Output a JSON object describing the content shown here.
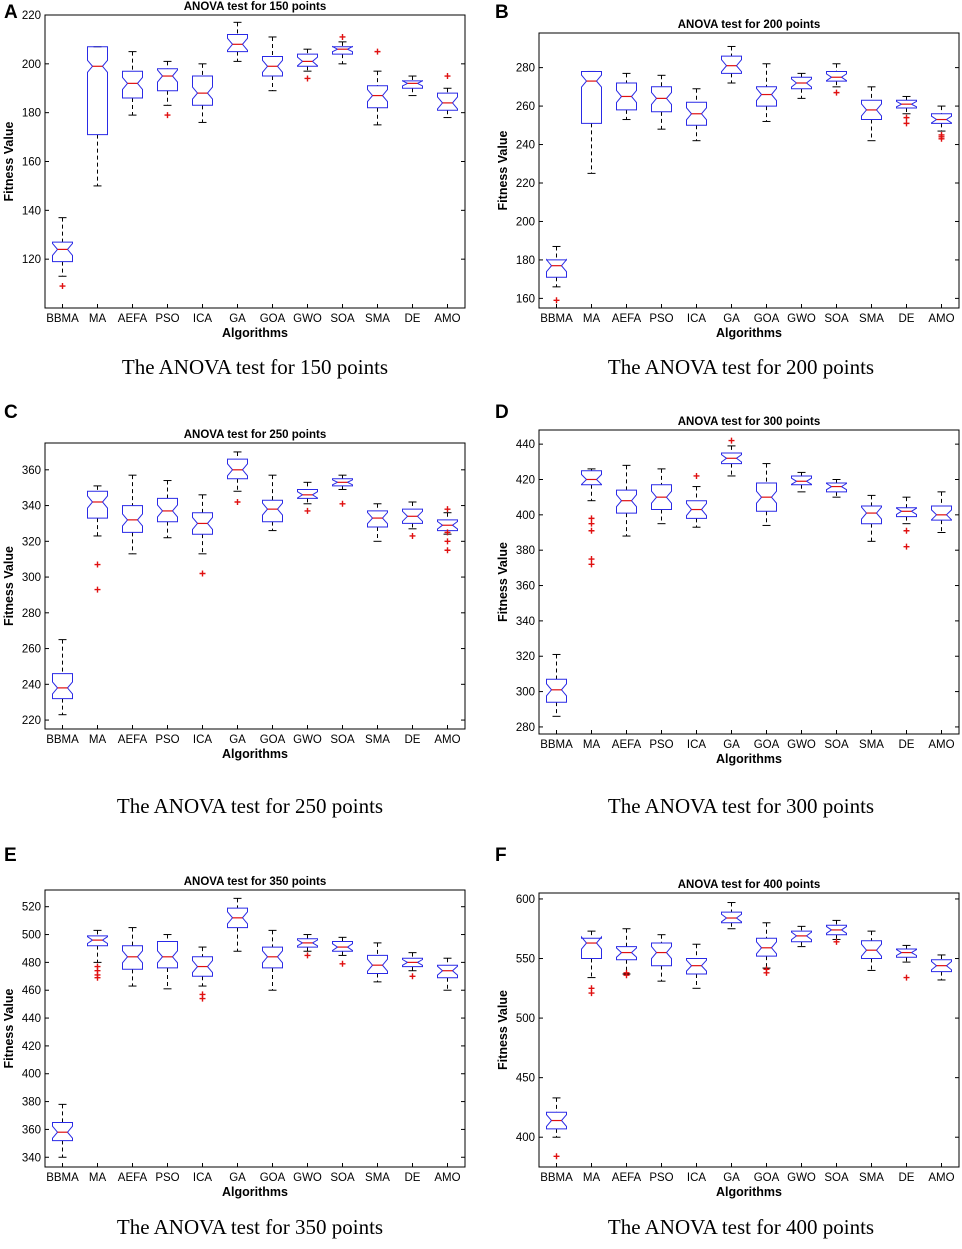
{
  "figure": {
    "algorithms": [
      "BBMA",
      "MA",
      "AEFA",
      "PSO",
      "ICA",
      "GA",
      "GOA",
      "GWO",
      "SOA",
      "SMA",
      "DE",
      "AMO"
    ]
  },
  "chart_data": [
    {
      "letter": "A",
      "type": "boxplot",
      "title": "ANOVA test for 150 points",
      "xlabel": "Algorithms",
      "ylabel": "Fitness Value",
      "caption": "The ANOVA test for 150 points",
      "ylim": [
        100,
        220
      ],
      "yticks": [
        120,
        140,
        160,
        180,
        200,
        220
      ],
      "boxes": [
        {
          "lw": 113,
          "q1": 119,
          "med": 124,
          "q3": 127,
          "uw": 137,
          "out": [
            109
          ]
        },
        {
          "lw": 150,
          "q1": 171,
          "med": 199,
          "q3": 207,
          "uw": 207,
          "out": []
        },
        {
          "lw": 179,
          "q1": 186,
          "med": 192,
          "q3": 197,
          "uw": 205,
          "out": []
        },
        {
          "lw": 183,
          "q1": 189,
          "med": 195,
          "q3": 198,
          "uw": 201,
          "out": [
            179
          ]
        },
        {
          "lw": 176,
          "q1": 183,
          "med": 188,
          "q3": 195,
          "uw": 200,
          "out": []
        },
        {
          "lw": 201,
          "q1": 205,
          "med": 208,
          "q3": 212,
          "uw": 217,
          "out": []
        },
        {
          "lw": 189,
          "q1": 195,
          "med": 199,
          "q3": 203,
          "uw": 211,
          "out": []
        },
        {
          "lw": 197,
          "q1": 199,
          "med": 201,
          "q3": 204,
          "uw": 206,
          "out": [
            194
          ]
        },
        {
          "lw": 200,
          "q1": 204,
          "med": 206,
          "q3": 207,
          "uw": 209,
          "out": [
            211
          ]
        },
        {
          "lw": 175,
          "q1": 182,
          "med": 187,
          "q3": 191,
          "uw": 197,
          "out": [
            205
          ]
        },
        {
          "lw": 187,
          "q1": 190,
          "med": 192,
          "q3": 193,
          "uw": 195,
          "out": []
        },
        {
          "lw": 178,
          "q1": 181,
          "med": 184,
          "q3": 188,
          "uw": 190,
          "out": [
            195
          ]
        }
      ]
    },
    {
      "letter": "B",
      "type": "boxplot",
      "title": "ANOVA test for 200 points",
      "xlabel": "Algorithms",
      "ylabel": "Fitness Value",
      "caption": "The ANOVA test for 200 points",
      "ylim": [
        155,
        298
      ],
      "yticks": [
        160,
        180,
        200,
        220,
        240,
        260,
        280
      ],
      "boxes": [
        {
          "lw": 166,
          "q1": 171,
          "med": 177,
          "q3": 180,
          "uw": 187,
          "out": [
            159
          ]
        },
        {
          "lw": 225,
          "q1": 251,
          "med": 273,
          "q3": 278,
          "uw": 278,
          "out": []
        },
        {
          "lw": 253,
          "q1": 258,
          "med": 265,
          "q3": 272,
          "uw": 277,
          "out": []
        },
        {
          "lw": 248,
          "q1": 257,
          "med": 264,
          "q3": 270,
          "uw": 276,
          "out": []
        },
        {
          "lw": 242,
          "q1": 250,
          "med": 256,
          "q3": 262,
          "uw": 269,
          "out": []
        },
        {
          "lw": 272,
          "q1": 277,
          "med": 281,
          "q3": 286,
          "uw": 291,
          "out": []
        },
        {
          "lw": 252,
          "q1": 260,
          "med": 266,
          "q3": 270,
          "uw": 282,
          "out": []
        },
        {
          "lw": 264,
          "q1": 269,
          "med": 272,
          "q3": 275,
          "uw": 277,
          "out": []
        },
        {
          "lw": 270,
          "q1": 273,
          "med": 275,
          "q3": 278,
          "uw": 282,
          "out": [
            267
          ]
        },
        {
          "lw": 242,
          "q1": 253,
          "med": 258,
          "q3": 263,
          "uw": 270,
          "out": []
        },
        {
          "lw": 256,
          "q1": 259,
          "med": 261,
          "q3": 263,
          "uw": 265,
          "out": [
            251,
            254
          ]
        },
        {
          "lw": 247,
          "q1": 251,
          "med": 253,
          "q3": 256,
          "uw": 260,
          "out": [
            243,
            244,
            245
          ]
        }
      ]
    },
    {
      "letter": "C",
      "type": "boxplot",
      "title": "ANOVA test for 250 points",
      "xlabel": "Algorithms",
      "ylabel": "Fitness Value",
      "caption": "The ANOVA test for 250 points",
      "ylim": [
        215,
        375
      ],
      "yticks": [
        220,
        240,
        260,
        280,
        300,
        320,
        340,
        360
      ],
      "boxes": [
        {
          "lw": 223,
          "q1": 232,
          "med": 238,
          "q3": 246,
          "uw": 265,
          "out": []
        },
        {
          "lw": 323,
          "q1": 333,
          "med": 342,
          "q3": 348,
          "uw": 351,
          "out": [
            293,
            307
          ]
        },
        {
          "lw": 313,
          "q1": 325,
          "med": 332,
          "q3": 340,
          "uw": 357,
          "out": []
        },
        {
          "lw": 322,
          "q1": 331,
          "med": 337,
          "q3": 344,
          "uw": 354,
          "out": []
        },
        {
          "lw": 313,
          "q1": 324,
          "med": 330,
          "q3": 336,
          "uw": 346,
          "out": [
            302
          ]
        },
        {
          "lw": 348,
          "q1": 355,
          "med": 360,
          "q3": 366,
          "uw": 370,
          "out": [
            342
          ]
        },
        {
          "lw": 326,
          "q1": 331,
          "med": 338,
          "q3": 343,
          "uw": 357,
          "out": []
        },
        {
          "lw": 341,
          "q1": 344,
          "med": 346,
          "q3": 349,
          "uw": 353,
          "out": [
            337
          ]
        },
        {
          "lw": 349,
          "q1": 351,
          "med": 353,
          "q3": 355,
          "uw": 357,
          "out": [
            341
          ]
        },
        {
          "lw": 320,
          "q1": 328,
          "med": 333,
          "q3": 337,
          "uw": 341,
          "out": []
        },
        {
          "lw": 327,
          "q1": 330,
          "med": 334,
          "q3": 338,
          "uw": 342,
          "out": [
            323
          ]
        },
        {
          "lw": 324,
          "q1": 326,
          "med": 329,
          "q3": 332,
          "uw": 336,
          "out": [
            315,
            320,
            325,
            338
          ]
        }
      ]
    },
    {
      "letter": "D",
      "type": "boxplot",
      "title": "ANOVA test for 300 points",
      "xlabel": "Algorithms",
      "ylabel": "Fitness Value",
      "caption": "The ANOVA test for 300 points",
      "ylim": [
        276,
        448
      ],
      "yticks": [
        280,
        300,
        320,
        340,
        360,
        380,
        400,
        420,
        440
      ],
      "boxes": [
        {
          "lw": 286,
          "q1": 294,
          "med": 301,
          "q3": 307,
          "uw": 321,
          "out": []
        },
        {
          "lw": 408,
          "q1": 417,
          "med": 420,
          "q3": 425,
          "uw": 426,
          "out": [
            372,
            375,
            391,
            395,
            398
          ]
        },
        {
          "lw": 388,
          "q1": 401,
          "med": 408,
          "q3": 414,
          "uw": 428,
          "out": []
        },
        {
          "lw": 395,
          "q1": 403,
          "med": 410,
          "q3": 417,
          "uw": 426,
          "out": []
        },
        {
          "lw": 393,
          "q1": 398,
          "med": 403,
          "q3": 408,
          "uw": 416,
          "out": [
            422
          ]
        },
        {
          "lw": 422,
          "q1": 429,
          "med": 432,
          "q3": 435,
          "uw": 439,
          "out": [
            442
          ]
        },
        {
          "lw": 394,
          "q1": 402,
          "med": 410,
          "q3": 418,
          "uw": 429,
          "out": []
        },
        {
          "lw": 413,
          "q1": 417,
          "med": 419,
          "q3": 422,
          "uw": 424,
          "out": []
        },
        {
          "lw": 410,
          "q1": 413,
          "med": 416,
          "q3": 418,
          "uw": 420,
          "out": []
        },
        {
          "lw": 385,
          "q1": 395,
          "med": 401,
          "q3": 405,
          "uw": 411,
          "out": []
        },
        {
          "lw": 395,
          "q1": 399,
          "med": 402,
          "q3": 404,
          "uw": 410,
          "out": [
            382,
            391
          ]
        },
        {
          "lw": 390,
          "q1": 397,
          "med": 400,
          "q3": 405,
          "uw": 413,
          "out": []
        }
      ]
    },
    {
      "letter": "E",
      "type": "boxplot",
      "title": "ANOVA test for 350 points",
      "xlabel": "Algorithms",
      "ylabel": "Fitness Value",
      "caption": "The ANOVA test for 350 points",
      "ylim": [
        333,
        532
      ],
      "yticks": [
        340,
        360,
        380,
        400,
        420,
        440,
        460,
        480,
        500,
        520
      ],
      "boxes": [
        {
          "lw": 340,
          "q1": 352,
          "med": 358,
          "q3": 365,
          "uw": 378,
          "out": []
        },
        {
          "lw": 480,
          "q1": 492,
          "med": 496,
          "q3": 499,
          "uw": 503,
          "out": [
            469,
            471,
            474,
            477
          ]
        },
        {
          "lw": 463,
          "q1": 475,
          "med": 484,
          "q3": 492,
          "uw": 505,
          "out": []
        },
        {
          "lw": 461,
          "q1": 476,
          "med": 484,
          "q3": 495,
          "uw": 500,
          "out": []
        },
        {
          "lw": 463,
          "q1": 470,
          "med": 477,
          "q3": 484,
          "uw": 491,
          "out": [
            454,
            457
          ]
        },
        {
          "lw": 488,
          "q1": 505,
          "med": 512,
          "q3": 519,
          "uw": 526,
          "out": []
        },
        {
          "lw": 460,
          "q1": 476,
          "med": 484,
          "q3": 491,
          "uw": 503,
          "out": []
        },
        {
          "lw": 488,
          "q1": 491,
          "med": 494,
          "q3": 497,
          "uw": 500,
          "out": [
            485
          ]
        },
        {
          "lw": 485,
          "q1": 488,
          "med": 491,
          "q3": 495,
          "uw": 498,
          "out": [
            479
          ]
        },
        {
          "lw": 466,
          "q1": 472,
          "med": 478,
          "q3": 485,
          "uw": 494,
          "out": []
        },
        {
          "lw": 474,
          "q1": 477,
          "med": 480,
          "q3": 483,
          "uw": 487,
          "out": [
            470
          ]
        },
        {
          "lw": 460,
          "q1": 469,
          "med": 474,
          "q3": 478,
          "uw": 483,
          "out": []
        }
      ]
    },
    {
      "letter": "F",
      "type": "boxplot",
      "title": "ANOVA test for 400 points",
      "xlabel": "Algorithms",
      "ylabel": "Fitness Value",
      "caption": "The ANOVA test for 400 points",
      "ylim": [
        375,
        605
      ],
      "yticks": [
        400,
        450,
        500,
        550,
        600
      ],
      "boxes": [
        {
          "lw": 400,
          "q1": 407,
          "med": 414,
          "q3": 421,
          "uw": 433,
          "out": [
            384
          ]
        },
        {
          "lw": 534,
          "q1": 550,
          "med": 563,
          "q3": 567,
          "uw": 573,
          "out": [
            521,
            525
          ]
        },
        {
          "lw": 537,
          "q1": 549,
          "med": 555,
          "q3": 560,
          "uw": 575,
          "out": [
            536,
            538
          ]
        },
        {
          "lw": 531,
          "q1": 544,
          "med": 555,
          "q3": 563,
          "uw": 570,
          "out": []
        },
        {
          "lw": 525,
          "q1": 537,
          "med": 544,
          "q3": 550,
          "uw": 562,
          "out": []
        },
        {
          "lw": 575,
          "q1": 580,
          "med": 584,
          "q3": 589,
          "uw": 597,
          "out": []
        },
        {
          "lw": 542,
          "q1": 552,
          "med": 559,
          "q3": 567,
          "uw": 580,
          "out": [
            538,
            541
          ]
        },
        {
          "lw": 560,
          "q1": 564,
          "med": 569,
          "q3": 573,
          "uw": 577,
          "out": []
        },
        {
          "lw": 566,
          "q1": 570,
          "med": 574,
          "q3": 578,
          "uw": 582,
          "out": [
            564
          ]
        },
        {
          "lw": 540,
          "q1": 550,
          "med": 557,
          "q3": 565,
          "uw": 573,
          "out": []
        },
        {
          "lw": 547,
          "q1": 551,
          "med": 555,
          "q3": 558,
          "uw": 561,
          "out": [
            534
          ]
        },
        {
          "lw": 532,
          "q1": 539,
          "med": 544,
          "q3": 549,
          "uw": 553,
          "out": []
        }
      ]
    }
  ]
}
